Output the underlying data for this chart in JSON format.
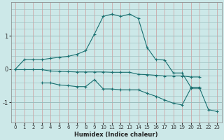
{
  "x": [
    0,
    1,
    2,
    3,
    4,
    5,
    6,
    7,
    8,
    9,
    10,
    11,
    12,
    13,
    14,
    15,
    16,
    17,
    18,
    19,
    20,
    21,
    22,
    23
  ],
  "line1": [
    0.0,
    0.28,
    0.28,
    0.28,
    0.32,
    0.35,
    0.38,
    0.44,
    0.55,
    1.05,
    1.58,
    1.65,
    1.58,
    1.65,
    1.52,
    0.65,
    0.28,
    0.27,
    -0.12,
    -0.12,
    -0.55,
    -0.55,
    null,
    null
  ],
  "line3": [
    -0.02,
    -0.02,
    -0.02,
    -0.02,
    -0.06,
    -0.07,
    -0.08,
    -0.09,
    -0.09,
    -0.09,
    -0.09,
    -0.1,
    -0.1,
    -0.1,
    -0.16,
    -0.17,
    -0.19,
    -0.21,
    -0.21,
    -0.21,
    -0.24,
    -0.24,
    null,
    null
  ],
  "line4": [
    null,
    null,
    null,
    -0.42,
    -0.42,
    -0.48,
    -0.5,
    -0.53,
    -0.53,
    -0.32,
    -0.6,
    -0.6,
    -0.63,
    -0.63,
    -0.63,
    -0.73,
    -0.82,
    -0.93,
    -1.03,
    -1.08,
    -0.58,
    -0.58,
    -1.22,
    -1.28
  ],
  "background_color": "#cce8e8",
  "vgrid_color": "#cc9999",
  "hgrid_color": "#99bbbb",
  "line_color": "#1a7070",
  "xlabel": "Humidex (Indice chaleur)",
  "ylim": [
    -1.6,
    2.0
  ],
  "xlim": [
    -0.5,
    23.5
  ],
  "yticks": [
    -1,
    0,
    1
  ],
  "xticks": [
    0,
    1,
    2,
    3,
    4,
    5,
    6,
    7,
    8,
    9,
    10,
    11,
    12,
    13,
    14,
    15,
    16,
    17,
    18,
    19,
    20,
    21,
    22,
    23
  ]
}
